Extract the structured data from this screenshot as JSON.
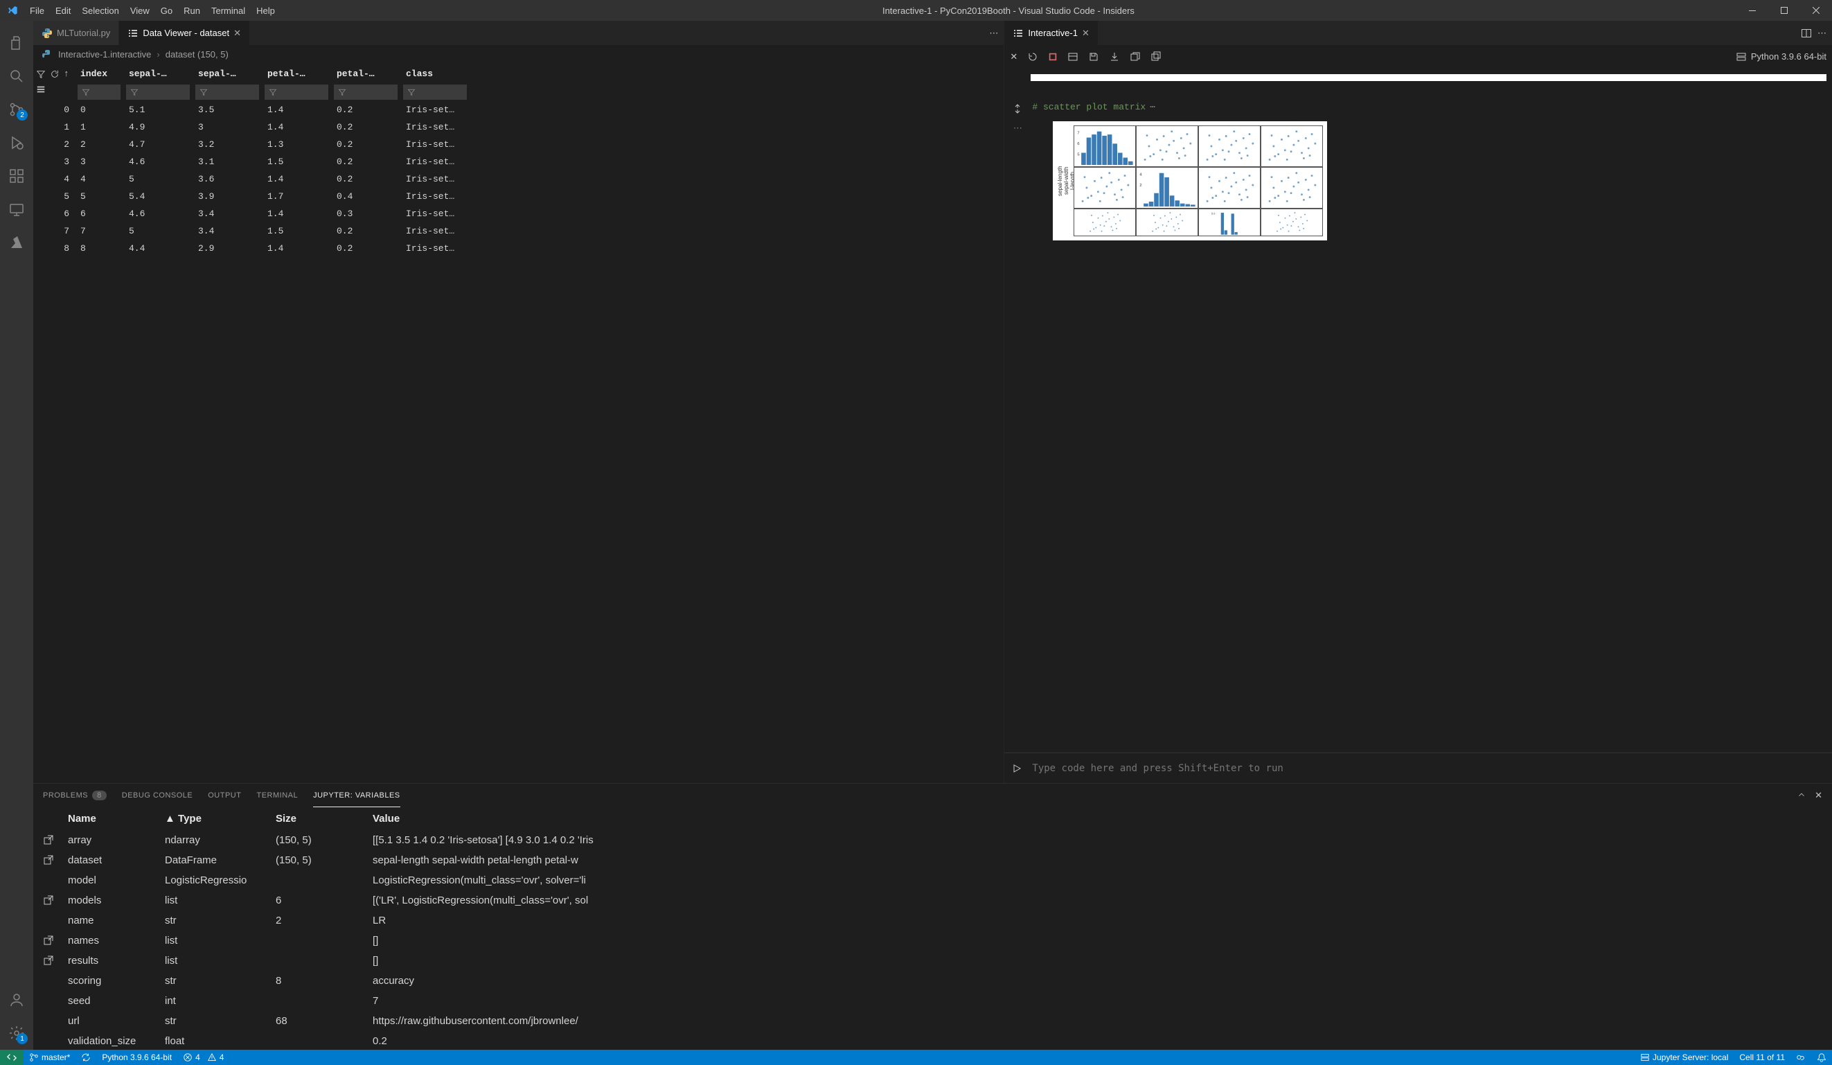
{
  "window": {
    "title": "Interactive-1 - PyCon2019Booth - Visual Studio Code - Insiders"
  },
  "menu": [
    "File",
    "Edit",
    "Selection",
    "View",
    "Go",
    "Run",
    "Terminal",
    "Help"
  ],
  "activity": {
    "scm_badge": "2",
    "settings_badge": "1"
  },
  "left_tabs": [
    {
      "label": "MLTutorial.py",
      "active": false,
      "icon": "python"
    },
    {
      "label": "Data Viewer - dataset",
      "active": true,
      "icon": "list",
      "closable": true
    }
  ],
  "breadcrumb": {
    "a": "Interactive-1.interactive",
    "b": "dataset (150, 5)"
  },
  "data_viewer": {
    "columns": [
      "index",
      "sepal-…",
      "sepal-…",
      "petal-…",
      "petal-…",
      "class"
    ],
    "rows": [
      {
        "n": 0,
        "idx": "0",
        "c": [
          "5.1",
          "3.5",
          "1.4",
          "0.2",
          "Iris-set…"
        ]
      },
      {
        "n": 1,
        "idx": "1",
        "c": [
          "4.9",
          "3",
          "1.4",
          "0.2",
          "Iris-set…"
        ]
      },
      {
        "n": 2,
        "idx": "2",
        "c": [
          "4.7",
          "3.2",
          "1.3",
          "0.2",
          "Iris-set…"
        ]
      },
      {
        "n": 3,
        "idx": "3",
        "c": [
          "4.6",
          "3.1",
          "1.5",
          "0.2",
          "Iris-set…"
        ]
      },
      {
        "n": 4,
        "idx": "4",
        "c": [
          "5",
          "3.6",
          "1.4",
          "0.2",
          "Iris-set…"
        ]
      },
      {
        "n": 5,
        "idx": "5",
        "c": [
          "5.4",
          "3.9",
          "1.7",
          "0.4",
          "Iris-set…"
        ]
      },
      {
        "n": 6,
        "idx": "6",
        "c": [
          "4.6",
          "3.4",
          "1.4",
          "0.3",
          "Iris-set…"
        ]
      },
      {
        "n": 7,
        "idx": "7",
        "c": [
          "5",
          "3.4",
          "1.5",
          "0.2",
          "Iris-set…"
        ]
      },
      {
        "n": 8,
        "idx": "8",
        "c": [
          "4.4",
          "2.9",
          "1.4",
          "0.2",
          "Iris-set…"
        ]
      }
    ]
  },
  "right_tabs": [
    {
      "label": "Interactive-1",
      "active": true
    }
  ],
  "interactive": {
    "interpreter": "Python 3.9.6 64-bit",
    "code_comment": "# scatter plot matrix",
    "input_placeholder": "Type code here and press Shift+Enter to run",
    "ylabels": [
      "sepal-length",
      "sepal-width",
      "l-length"
    ],
    "yticks_top": [
      "7",
      "6",
      "5"
    ],
    "yticks_mid": [
      "4",
      "2"
    ],
    "yticks_bot": [
      "5.0"
    ],
    "chart_color": "#3a7ab5",
    "scatter_points": [
      [
        12,
        50
      ],
      [
        18,
        30
      ],
      [
        25,
        42
      ],
      [
        30,
        20
      ],
      [
        35,
        36
      ],
      [
        40,
        15
      ],
      [
        48,
        28
      ],
      [
        55,
        22
      ],
      [
        60,
        40
      ],
      [
        66,
        18
      ],
      [
        70,
        33
      ],
      [
        75,
        12
      ],
      [
        80,
        26
      ],
      [
        20,
        45
      ],
      [
        44,
        38
      ],
      [
        52,
        8
      ],
      [
        63,
        48
      ],
      [
        72,
        44
      ],
      [
        15,
        14
      ],
      [
        38,
        50
      ]
    ],
    "hist_top": [
      20,
      45,
      50,
      55,
      48,
      50,
      35,
      20,
      12,
      6
    ],
    "hist_mid": [
      5,
      8,
      22,
      55,
      48,
      18,
      10,
      5,
      4,
      3
    ],
    "hist_bot": [
      0,
      0,
      50,
      10,
      0,
      48,
      6,
      0,
      0,
      0
    ]
  },
  "panel": {
    "tabs": [
      "PROBLEMS",
      "DEBUG CONSOLE",
      "OUTPUT",
      "TERMINAL",
      "JUPYTER: VARIABLES"
    ],
    "active_tab": "JUPYTER: VARIABLES",
    "problems_count": "8",
    "headers": {
      "name": "Name",
      "type": "▲ Type",
      "size": "Size",
      "value": "Value"
    },
    "vars": [
      {
        "pop": true,
        "name": "array",
        "type": "ndarray",
        "size": "(150, 5)",
        "value": "[[5.1 3.5 1.4 0.2 'Iris-setosa'] [4.9 3.0 1.4 0.2 'Iris"
      },
      {
        "pop": true,
        "name": "dataset",
        "type": "DataFrame",
        "size": "(150, 5)",
        "value": "sepal-length sepal-width petal-length petal-w"
      },
      {
        "pop": false,
        "name": "model",
        "type": "LogisticRegressio",
        "size": "",
        "value": "LogisticRegression(multi_class='ovr', solver='li"
      },
      {
        "pop": true,
        "name": "models",
        "type": "list",
        "size": "6",
        "value": "[('LR', LogisticRegression(multi_class='ovr', sol"
      },
      {
        "pop": false,
        "name": "name",
        "type": "str",
        "size": "2",
        "value": "LR"
      },
      {
        "pop": true,
        "name": "names",
        "type": "list",
        "size": "",
        "value": "[]"
      },
      {
        "pop": true,
        "name": "results",
        "type": "list",
        "size": "",
        "value": "[]"
      },
      {
        "pop": false,
        "name": "scoring",
        "type": "str",
        "size": "8",
        "value": "accuracy"
      },
      {
        "pop": false,
        "name": "seed",
        "type": "int",
        "size": "",
        "value": "7"
      },
      {
        "pop": false,
        "name": "url",
        "type": "str",
        "size": "68",
        "value": "https://raw.githubusercontent.com/jbrownlee/"
      },
      {
        "pop": false,
        "name": "validation_size",
        "type": "float",
        "size": "",
        "value": "0.2"
      }
    ]
  },
  "statusbar": {
    "branch": "master*",
    "python": "Python 3.9.6 64-bit",
    "errors": "4",
    "warnings": "4",
    "jupyter": "Jupyter Server: local",
    "cell": "Cell 11 of 11"
  }
}
